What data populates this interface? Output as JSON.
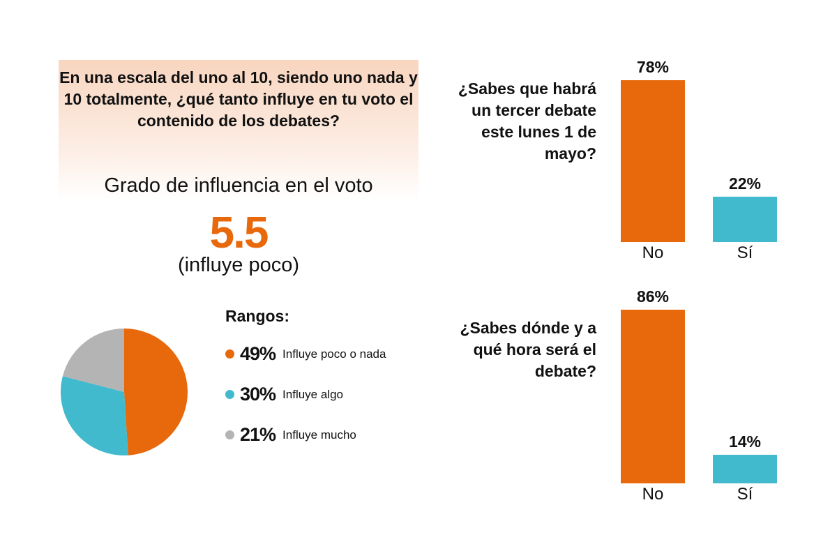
{
  "question": "En una escala del uno al 10, siendo uno nada y 10 totalmente, ¿qué tanto influye en tu voto el contenido de los debates?",
  "grado_label": "Grado de influencia en el voto",
  "grado_value": "5.5",
  "grado_desc": "(influye poco)",
  "colors": {
    "orange": "#E8680C",
    "cyan": "#41BACE",
    "gray": "#B4B4B4"
  },
  "chart_data": [
    {
      "type": "pie",
      "title": "Rangos:",
      "slices": [
        {
          "label": "Influye poco o nada",
          "value": 49,
          "value_label": "49%",
          "color": "#E8680C"
        },
        {
          "label": "Influye algo",
          "value": 30,
          "value_label": "30%",
          "color": "#41BACE"
        },
        {
          "label": "Influye mucho",
          "value": 21,
          "value_label": "21%",
          "color": "#B4B4B4"
        }
      ]
    },
    {
      "type": "bar",
      "title": "¿Sabes que habrá un tercer debate este lunes 1 de mayo?",
      "categories": [
        "No",
        "Sí"
      ],
      "values": [
        78,
        22
      ],
      "value_labels": [
        "78%",
        "22%"
      ],
      "colors": [
        "#E8680C",
        "#41BACE"
      ]
    },
    {
      "type": "bar",
      "title": "¿Sabes dónde y a qué hora será el debate?",
      "categories": [
        "No",
        "Sí"
      ],
      "values": [
        86,
        14
      ],
      "value_labels": [
        "86%",
        "14%"
      ],
      "colors": [
        "#E8680C",
        "#41BACE"
      ]
    }
  ]
}
